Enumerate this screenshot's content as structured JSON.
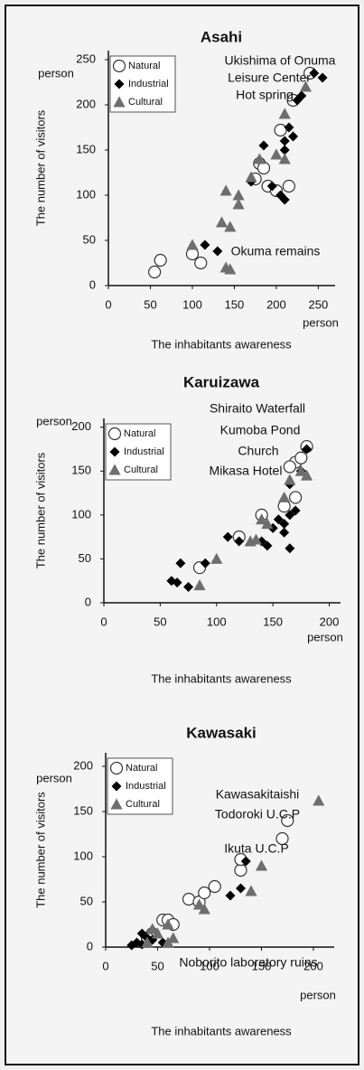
{
  "chart_data": [
    {
      "type": "scatter",
      "title": "Asahi",
      "xlabel": "The inhabitants awareness",
      "ylabel": "The number of visitors",
      "x_unit": "person",
      "y_unit": "person",
      "xlim": [
        0,
        270
      ],
      "ylim": [
        0,
        260
      ],
      "xticks": [
        0,
        50,
        100,
        150,
        200,
        250
      ],
      "yticks": [
        0,
        50,
        100,
        150,
        200,
        250
      ],
      "legend": "upper left",
      "series": [
        {
          "name": "Natural",
          "marker": "circle",
          "color": "#ffffff",
          "x": [
            55,
            62,
            100,
            110,
            175,
            180,
            185,
            190,
            200,
            215,
            205,
            220,
            240
          ],
          "values": [
            15,
            28,
            35,
            25,
            118,
            135,
            130,
            110,
            105,
            110,
            172,
            205,
            235
          ]
        },
        {
          "name": "Industrial",
          "marker": "diamond",
          "color": "#000000",
          "x": [
            115,
            130,
            170,
            185,
            195,
            205,
            210,
            210,
            215,
            220,
            225,
            230,
            255,
            245,
            210
          ],
          "values": [
            45,
            38,
            115,
            155,
            110,
            100,
            95,
            160,
            175,
            165,
            205,
            210,
            230,
            235,
            150
          ]
        },
        {
          "name": "Cultural",
          "marker": "triangle",
          "color": "#6e6e6e",
          "x": [
            100,
            135,
            140,
            145,
            155,
            155,
            170,
            180,
            200,
            210,
            235,
            140,
            145,
            210
          ],
          "values": [
            45,
            70,
            105,
            65,
            90,
            100,
            120,
            140,
            145,
            190,
            220,
            20,
            18,
            140
          ]
        }
      ],
      "annotations": [
        "Ukishima of Onuma",
        "Leisure Center",
        "Hot spring",
        "Okuma remains"
      ]
    },
    {
      "type": "scatter",
      "title": "Karuizawa",
      "xlabel": "The inhabitants awareness",
      "ylabel": "The number of visitors",
      "x_unit": "person",
      "y_unit": "person",
      "xlim": [
        0,
        210
      ],
      "ylim": [
        0,
        210
      ],
      "xticks": [
        0,
        50,
        100,
        150,
        200
      ],
      "yticks": [
        0,
        50,
        100,
        150,
        200
      ],
      "legend": "upper left",
      "series": [
        {
          "name": "Natural",
          "marker": "circle",
          "color": "#ffffff",
          "x": [
            85,
            120,
            140,
            160,
            170,
            170,
            175,
            180,
            165
          ],
          "values": [
            40,
            75,
            100,
            110,
            120,
            160,
            165,
            178,
            155
          ]
        },
        {
          "name": "Industrial",
          "marker": "diamond",
          "color": "#000000",
          "x": [
            60,
            65,
            68,
            75,
            90,
            110,
            120,
            140,
            145,
            150,
            160,
            160,
            165,
            170,
            165,
            165,
            175,
            180,
            155
          ],
          "values": [
            25,
            23,
            45,
            18,
            45,
            75,
            70,
            70,
            65,
            85,
            80,
            90,
            100,
            105,
            135,
            62,
            150,
            175,
            95
          ]
        },
        {
          "name": "Cultural",
          "marker": "triangle",
          "color": "#6e6e6e",
          "x": [
            85,
            100,
            130,
            140,
            145,
            160,
            165,
            175,
            180,
            135
          ],
          "values": [
            20,
            50,
            70,
            95,
            90,
            120,
            140,
            150,
            145,
            72
          ]
        }
      ],
      "annotations": [
        "Shiraito Waterfall",
        "Kumoba Pond",
        "Church",
        "Mikasa Hotel"
      ]
    },
    {
      "type": "scatter",
      "title": "Kawasaki",
      "xlabel": "The inhabitants awareness",
      "ylabel": "The number of visitors",
      "x_unit": "person",
      "y_unit": "person",
      "xlim": [
        0,
        220
      ],
      "ylim": [
        0,
        215
      ],
      "xticks": [
        0,
        50,
        100,
        150,
        200
      ],
      "yticks": [
        0,
        50,
        100,
        150,
        200
      ],
      "legend": "upper left",
      "series": [
        {
          "name": "Natural",
          "marker": "circle",
          "color": "#ffffff",
          "x": [
            45,
            55,
            60,
            65,
            80,
            90,
            95,
            105,
            130,
            130,
            170,
            175,
            40
          ],
          "values": [
            15,
            30,
            30,
            25,
            53,
            50,
            60,
            67,
            85,
            97,
            120,
            140,
            10
          ]
        },
        {
          "name": "Industrial",
          "marker": "diamond",
          "color": "#000000",
          "x": [
            25,
            30,
            35,
            40,
            45,
            120,
            130,
            135,
            35,
            55
          ],
          "values": [
            2,
            5,
            15,
            10,
            8,
            57,
            65,
            95,
            3,
            5
          ]
        },
        {
          "name": "Cultural",
          "marker": "triangle",
          "color": "#6e6e6e",
          "x": [
            40,
            50,
            60,
            65,
            90,
            95,
            140,
            150,
            205,
            60,
            45
          ],
          "values": [
            5,
            15,
            25,
            10,
            47,
            42,
            62,
            90,
            162,
            5,
            20
          ]
        }
      ],
      "annotations": [
        "Kawasakitaishi",
        "Todoroki U.C.P",
        "Ikuta U.C.P",
        "Noborito laboratory ruins"
      ]
    }
  ]
}
